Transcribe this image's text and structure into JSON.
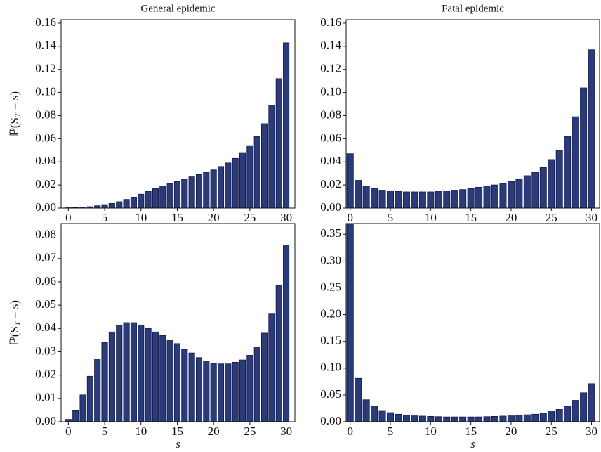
{
  "chart_data": [
    {
      "type": "bar",
      "title": "General epidemic",
      "ylabel": "ℙ(S_T = s)",
      "x": [
        0,
        1,
        2,
        3,
        4,
        5,
        6,
        7,
        8,
        9,
        10,
        11,
        12,
        13,
        14,
        15,
        16,
        17,
        18,
        19,
        20,
        21,
        22,
        23,
        24,
        25,
        26,
        27,
        28,
        29,
        30
      ],
      "values": [
        0.0003,
        0.0005,
        0.0008,
        0.0012,
        0.002,
        0.003,
        0.004,
        0.0055,
        0.0075,
        0.0095,
        0.012,
        0.0145,
        0.017,
        0.019,
        0.021,
        0.023,
        0.025,
        0.027,
        0.029,
        0.031,
        0.033,
        0.036,
        0.039,
        0.043,
        0.048,
        0.054,
        0.062,
        0.073,
        0.089,
        0.112,
        0.143
      ],
      "color": "#2b3a7a",
      "xlim": [
        -1,
        31.2
      ],
      "xticks": [
        0,
        5,
        10,
        15,
        20,
        25,
        30
      ],
      "ylim": [
        0,
        0.163
      ],
      "yticks": [
        {
          "value": 0,
          "label": "0.00"
        },
        {
          "value": 0.02,
          "label": "0.02"
        },
        {
          "value": 0.04,
          "label": "0.04"
        },
        {
          "value": 0.06,
          "label": "0.06"
        },
        {
          "value": 0.08,
          "label": "0.08"
        },
        {
          "value": 0.1,
          "label": "0.10"
        },
        {
          "value": 0.12,
          "label": "0.12"
        },
        {
          "value": 0.14,
          "label": "0.14"
        },
        {
          "value": 0.16,
          "label": "0.16"
        }
      ]
    },
    {
      "type": "bar",
      "title": "Fatal epidemic",
      "x": [
        0,
        1,
        2,
        3,
        4,
        5,
        6,
        7,
        8,
        9,
        10,
        11,
        12,
        13,
        14,
        15,
        16,
        17,
        18,
        19,
        20,
        21,
        22,
        23,
        24,
        25,
        26,
        27,
        28,
        29,
        30
      ],
      "values": [
        0.047,
        0.024,
        0.019,
        0.017,
        0.0155,
        0.015,
        0.0145,
        0.014,
        0.014,
        0.014,
        0.014,
        0.0145,
        0.015,
        0.0155,
        0.016,
        0.017,
        0.018,
        0.019,
        0.02,
        0.021,
        0.023,
        0.025,
        0.028,
        0.031,
        0.035,
        0.042,
        0.05,
        0.062,
        0.079,
        0.104,
        0.137
      ],
      "color": "#2b3a7a",
      "xlim": [
        -0.5,
        31
      ],
      "xticks": [
        0,
        5,
        10,
        15,
        20,
        25,
        30
      ],
      "ylim": [
        0,
        0.163
      ],
      "yticks": [
        {
          "value": 0,
          "label": "0.00"
        },
        {
          "value": 0.02,
          "label": "0.02"
        },
        {
          "value": 0.04,
          "label": "0.04"
        },
        {
          "value": 0.06,
          "label": "0.06"
        },
        {
          "value": 0.08,
          "label": "0.08"
        },
        {
          "value": 0.1,
          "label": "0.10"
        },
        {
          "value": 0.12,
          "label": "0.12"
        },
        {
          "value": 0.14,
          "label": "0.14"
        },
        {
          "value": 0.16,
          "label": "0.16"
        }
      ]
    },
    {
      "type": "bar",
      "ylabel": "ℙ(S_T = s)",
      "xlabel": "s",
      "x": [
        0,
        1,
        2,
        3,
        4,
        5,
        6,
        7,
        8,
        9,
        10,
        11,
        12,
        13,
        14,
        15,
        16,
        17,
        18,
        19,
        20,
        21,
        22,
        23,
        24,
        25,
        26,
        27,
        28,
        29,
        30
      ],
      "values": [
        0.001,
        0.005,
        0.0115,
        0.0195,
        0.027,
        0.034,
        0.0385,
        0.0415,
        0.0425,
        0.0425,
        0.0415,
        0.04,
        0.0385,
        0.037,
        0.035,
        0.0335,
        0.031,
        0.0295,
        0.0275,
        0.026,
        0.025,
        0.0248,
        0.0248,
        0.0255,
        0.0265,
        0.0285,
        0.032,
        0.038,
        0.0465,
        0.0585,
        0.0755
      ],
      "color": "#2b3a7a",
      "xlim": [
        -1,
        31.2
      ],
      "xticks": [
        0,
        5,
        10,
        15,
        20,
        25,
        30
      ],
      "ylim": [
        0,
        0.085
      ],
      "yticks": [
        {
          "value": 0,
          "label": "0.00"
        },
        {
          "value": 0.01,
          "label": "0.01"
        },
        {
          "value": 0.02,
          "label": "0.02"
        },
        {
          "value": 0.03,
          "label": "0.03"
        },
        {
          "value": 0.04,
          "label": "0.04"
        },
        {
          "value": 0.05,
          "label": "0.05"
        },
        {
          "value": 0.06,
          "label": "0.06"
        },
        {
          "value": 0.07,
          "label": "0.07"
        },
        {
          "value": 0.08,
          "label": "0.08"
        }
      ]
    },
    {
      "type": "bar",
      "xlabel": "s",
      "x": [
        0,
        1,
        2,
        3,
        4,
        5,
        6,
        7,
        8,
        9,
        10,
        11,
        12,
        13,
        14,
        15,
        16,
        17,
        18,
        19,
        20,
        21,
        22,
        23,
        24,
        25,
        26,
        27,
        28,
        29,
        30
      ],
      "values": [
        0.369,
        0.081,
        0.041,
        0.029,
        0.021,
        0.017,
        0.014,
        0.012,
        0.011,
        0.0105,
        0.01,
        0.0095,
        0.009,
        0.009,
        0.009,
        0.009,
        0.009,
        0.0095,
        0.01,
        0.0105,
        0.011,
        0.012,
        0.013,
        0.014,
        0.016,
        0.019,
        0.023,
        0.029,
        0.04,
        0.054,
        0.071
      ],
      "color": "#2b3a7a",
      "xlim": [
        -0.5,
        31
      ],
      "xticks": [
        0,
        5,
        10,
        15,
        20,
        25,
        30
      ],
      "ylim": [
        0,
        0.37
      ],
      "yticks": [
        {
          "value": 0,
          "label": "0.00"
        },
        {
          "value": 0.05,
          "label": "0.05"
        },
        {
          "value": 0.1,
          "label": "0.10"
        },
        {
          "value": 0.15,
          "label": "0.15"
        },
        {
          "value": 0.2,
          "label": "0.20"
        },
        {
          "value": 0.25,
          "label": "0.25"
        },
        {
          "value": 0.3,
          "label": "0.30"
        },
        {
          "value": 0.35,
          "label": "0.35"
        }
      ]
    }
  ]
}
